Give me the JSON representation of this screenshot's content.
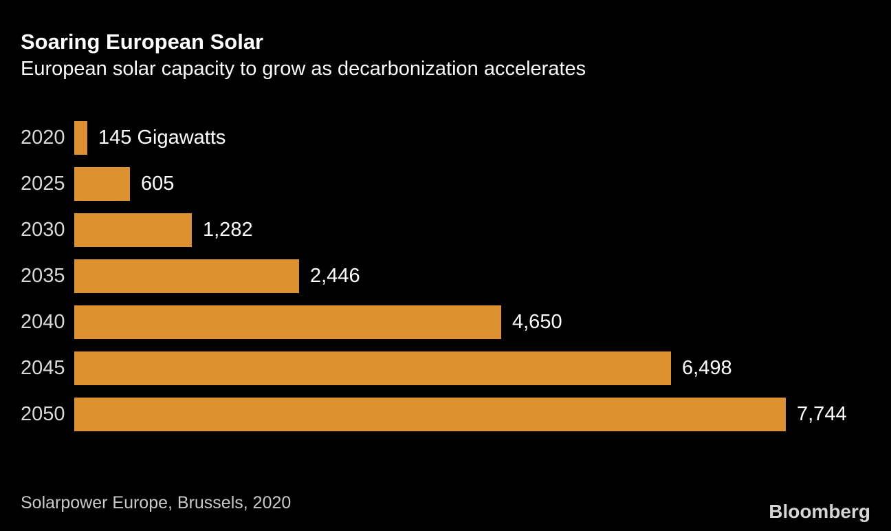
{
  "header": {
    "title": "Soaring European Solar",
    "subtitle": "European solar capacity to grow as decarbonization accelerates"
  },
  "chart_data": {
    "type": "bar",
    "orientation": "horizontal",
    "categories": [
      "2020",
      "2025",
      "2030",
      "2035",
      "2040",
      "2045",
      "2050"
    ],
    "values": [
      145,
      605,
      1282,
      2446,
      4650,
      6498,
      7744
    ],
    "value_labels": [
      "145 Gigawatts",
      "605",
      "1,282",
      "2,446",
      "4,650",
      "6,498",
      "7,744"
    ],
    "unit": "Gigawatts",
    "title": "Soaring European Solar",
    "xlabel": "",
    "ylabel": "",
    "xlim": [
      0,
      7744
    ],
    "grid": false,
    "legend": null,
    "bar_color": "#DD9130"
  },
  "footer": {
    "source": "Solarpower Europe, Brussels, 2020",
    "brand": "Bloomberg"
  },
  "colors": {
    "background": "#000000",
    "bar": "#DD9130",
    "title_text": "#FFFFFF",
    "category_text": "#D9D9D9",
    "value_text": "#FFFFFF",
    "source_text": "#C9C9C9",
    "brand_text": "#D6D6D6"
  }
}
